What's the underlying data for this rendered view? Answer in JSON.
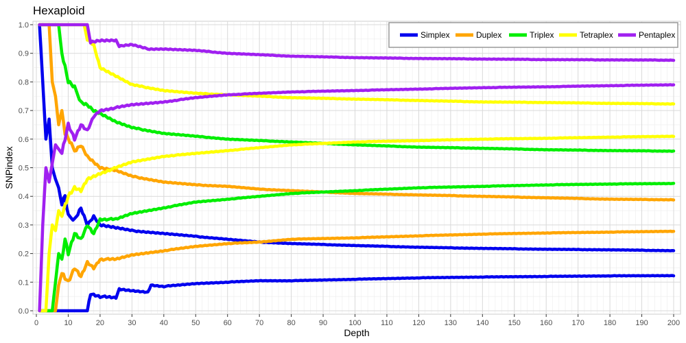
{
  "chart_data": {
    "type": "line",
    "title": "Hexaploid",
    "xlabel": "Depth",
    "ylabel": "SNPindex",
    "xlim": [
      0,
      200
    ],
    "ylim": [
      0,
      1
    ],
    "x_ticks": [
      0,
      10,
      20,
      30,
      40,
      50,
      60,
      70,
      80,
      90,
      100,
      110,
      120,
      130,
      140,
      150,
      160,
      170,
      180,
      190,
      200
    ],
    "y_ticks": [
      0.0,
      0.1,
      0.2,
      0.3,
      0.4,
      0.5,
      0.6,
      0.7,
      0.8,
      0.9,
      1.0
    ],
    "grid": true,
    "legend_position": "top-right",
    "series": [
      {
        "name": "Simplex",
        "color": "#0000ee",
        "lower": [
          [
            1,
            0
          ],
          [
            10,
            0
          ],
          [
            16,
            0
          ],
          [
            17,
            0.06
          ],
          [
            20,
            0.05
          ],
          [
            25,
            0.045
          ],
          [
            26,
            0.075
          ],
          [
            30,
            0.07
          ],
          [
            35,
            0.065
          ],
          [
            36,
            0.09
          ],
          [
            40,
            0.085
          ],
          [
            50,
            0.095
          ],
          [
            60,
            0.1
          ],
          [
            70,
            0.105
          ],
          [
            80,
            0.105
          ],
          [
            100,
            0.11
          ],
          [
            120,
            0.115
          ],
          [
            140,
            0.118
          ],
          [
            160,
            0.12
          ],
          [
            180,
            0.122
          ],
          [
            200,
            0.123
          ]
        ],
        "upper": [
          [
            1,
            1.0
          ],
          [
            2,
            0.8
          ],
          [
            3,
            0.6
          ],
          [
            4,
            0.67
          ],
          [
            5,
            0.5
          ],
          [
            6,
            0.46
          ],
          [
            7,
            0.43
          ],
          [
            8,
            0.37
          ],
          [
            9,
            0.4
          ],
          [
            10,
            0.33
          ],
          [
            12,
            0.32
          ],
          [
            14,
            0.36
          ],
          [
            16,
            0.3
          ],
          [
            18,
            0.33
          ],
          [
            20,
            0.3
          ],
          [
            25,
            0.29
          ],
          [
            30,
            0.28
          ],
          [
            40,
            0.27
          ],
          [
            50,
            0.26
          ],
          [
            60,
            0.25
          ],
          [
            70,
            0.24
          ],
          [
            80,
            0.235
          ],
          [
            100,
            0.228
          ],
          [
            120,
            0.222
          ],
          [
            140,
            0.218
          ],
          [
            160,
            0.215
          ],
          [
            180,
            0.213
          ],
          [
            200,
            0.21
          ]
        ]
      },
      {
        "name": "Duplex",
        "color": "#ffa500",
        "lower": [
          [
            1,
            0
          ],
          [
            6,
            0
          ],
          [
            7,
            0.09
          ],
          [
            8,
            0.13
          ],
          [
            10,
            0.1
          ],
          [
            12,
            0.15
          ],
          [
            14,
            0.12
          ],
          [
            16,
            0.17
          ],
          [
            18,
            0.15
          ],
          [
            20,
            0.18
          ],
          [
            25,
            0.18
          ],
          [
            30,
            0.195
          ],
          [
            40,
            0.21
          ],
          [
            50,
            0.225
          ],
          [
            60,
            0.235
          ],
          [
            70,
            0.24
          ],
          [
            80,
            0.25
          ],
          [
            100,
            0.255
          ],
          [
            120,
            0.262
          ],
          [
            140,
            0.268
          ],
          [
            160,
            0.272
          ],
          [
            180,
            0.275
          ],
          [
            200,
            0.278
          ]
        ],
        "upper": [
          [
            1,
            1.0
          ],
          [
            4,
            1.0
          ],
          [
            5,
            0.8
          ],
          [
            6,
            0.75
          ],
          [
            7,
            0.65
          ],
          [
            8,
            0.7
          ],
          [
            9,
            0.62
          ],
          [
            10,
            0.6
          ],
          [
            12,
            0.56
          ],
          [
            14,
            0.58
          ],
          [
            16,
            0.54
          ],
          [
            18,
            0.52
          ],
          [
            20,
            0.5
          ],
          [
            25,
            0.49
          ],
          [
            30,
            0.47
          ],
          [
            40,
            0.45
          ],
          [
            50,
            0.44
          ],
          [
            60,
            0.435
          ],
          [
            70,
            0.425
          ],
          [
            80,
            0.42
          ],
          [
            100,
            0.41
          ],
          [
            120,
            0.405
          ],
          [
            140,
            0.4
          ],
          [
            160,
            0.395
          ],
          [
            180,
            0.39
          ],
          [
            200,
            0.388
          ]
        ]
      },
      {
        "name": "Triplex",
        "color": "#00ee00",
        "lower": [
          [
            1,
            0
          ],
          [
            5,
            0
          ],
          [
            6,
            0.1
          ],
          [
            7,
            0.2
          ],
          [
            8,
            0.18
          ],
          [
            9,
            0.25
          ],
          [
            10,
            0.2
          ],
          [
            12,
            0.27
          ],
          [
            14,
            0.25
          ],
          [
            16,
            0.3
          ],
          [
            18,
            0.27
          ],
          [
            20,
            0.32
          ],
          [
            25,
            0.32
          ],
          [
            30,
            0.34
          ],
          [
            40,
            0.36
          ],
          [
            50,
            0.38
          ],
          [
            60,
            0.39
          ],
          [
            70,
            0.4
          ],
          [
            80,
            0.41
          ],
          [
            100,
            0.42
          ],
          [
            120,
            0.43
          ],
          [
            140,
            0.435
          ],
          [
            160,
            0.44
          ],
          [
            180,
            0.443
          ],
          [
            200,
            0.445
          ]
        ],
        "upper": [
          [
            1,
            1.0
          ],
          [
            7,
            1.0
          ],
          [
            8,
            0.9
          ],
          [
            9,
            0.85
          ],
          [
            10,
            0.8
          ],
          [
            12,
            0.78
          ],
          [
            14,
            0.73
          ],
          [
            16,
            0.72
          ],
          [
            18,
            0.7
          ],
          [
            20,
            0.69
          ],
          [
            25,
            0.66
          ],
          [
            30,
            0.64
          ],
          [
            40,
            0.62
          ],
          [
            50,
            0.61
          ],
          [
            60,
            0.6
          ],
          [
            70,
            0.595
          ],
          [
            80,
            0.59
          ],
          [
            100,
            0.58
          ],
          [
            120,
            0.572
          ],
          [
            140,
            0.568
          ],
          [
            160,
            0.563
          ],
          [
            180,
            0.56
          ],
          [
            200,
            0.558
          ]
        ]
      },
      {
        "name": "Tetraplex",
        "color": "#ffff00",
        "lower": [
          [
            1,
            0
          ],
          [
            3,
            0
          ],
          [
            4,
            0.2
          ],
          [
            5,
            0.3
          ],
          [
            6,
            0.28
          ],
          [
            7,
            0.35
          ],
          [
            8,
            0.33
          ],
          [
            10,
            0.4
          ],
          [
            12,
            0.43
          ],
          [
            14,
            0.42
          ],
          [
            16,
            0.46
          ],
          [
            18,
            0.47
          ],
          [
            20,
            0.48
          ],
          [
            25,
            0.5
          ],
          [
            30,
            0.52
          ],
          [
            40,
            0.54
          ],
          [
            50,
            0.55
          ],
          [
            60,
            0.56
          ],
          [
            70,
            0.57
          ],
          [
            80,
            0.58
          ],
          [
            100,
            0.59
          ],
          [
            120,
            0.595
          ],
          [
            140,
            0.6
          ],
          [
            160,
            0.603
          ],
          [
            180,
            0.607
          ],
          [
            200,
            0.61
          ]
        ],
        "upper": [
          [
            1,
            1.0
          ],
          [
            15,
            1.0
          ],
          [
            16,
            0.95
          ],
          [
            18,
            0.93
          ],
          [
            20,
            0.85
          ],
          [
            25,
            0.82
          ],
          [
            30,
            0.79
          ],
          [
            40,
            0.77
          ],
          [
            50,
            0.76
          ],
          [
            60,
            0.755
          ],
          [
            70,
            0.75
          ],
          [
            80,
            0.745
          ],
          [
            100,
            0.74
          ],
          [
            120,
            0.735
          ],
          [
            140,
            0.73
          ],
          [
            160,
            0.728
          ],
          [
            180,
            0.725
          ],
          [
            200,
            0.723
          ]
        ]
      },
      {
        "name": "Pentaplex",
        "color": "#a020f0",
        "lower": [
          [
            1,
            0
          ],
          [
            2,
            0.3
          ],
          [
            3,
            0.5
          ],
          [
            4,
            0.45
          ],
          [
            6,
            0.58
          ],
          [
            8,
            0.55
          ],
          [
            10,
            0.65
          ],
          [
            12,
            0.6
          ],
          [
            14,
            0.65
          ],
          [
            16,
            0.63
          ],
          [
            18,
            0.68
          ],
          [
            20,
            0.7
          ],
          [
            25,
            0.71
          ],
          [
            30,
            0.72
          ],
          [
            40,
            0.73
          ],
          [
            50,
            0.745
          ],
          [
            60,
            0.755
          ],
          [
            70,
            0.76
          ],
          [
            80,
            0.765
          ],
          [
            100,
            0.77
          ],
          [
            120,
            0.775
          ],
          [
            140,
            0.78
          ],
          [
            160,
            0.783
          ],
          [
            180,
            0.787
          ],
          [
            200,
            0.79
          ]
        ],
        "upper": [
          [
            1,
            1.0
          ],
          [
            16,
            1.0
          ],
          [
            17,
            0.94
          ],
          [
            20,
            0.945
          ],
          [
            25,
            0.945
          ],
          [
            26,
            0.925
          ],
          [
            30,
            0.93
          ],
          [
            35,
            0.915
          ],
          [
            40,
            0.915
          ],
          [
            50,
            0.91
          ],
          [
            60,
            0.9
          ],
          [
            70,
            0.895
          ],
          [
            80,
            0.89
          ],
          [
            100,
            0.885
          ],
          [
            120,
            0.882
          ],
          [
            140,
            0.88
          ],
          [
            160,
            0.878
          ],
          [
            180,
            0.877
          ],
          [
            200,
            0.876
          ]
        ]
      }
    ]
  }
}
